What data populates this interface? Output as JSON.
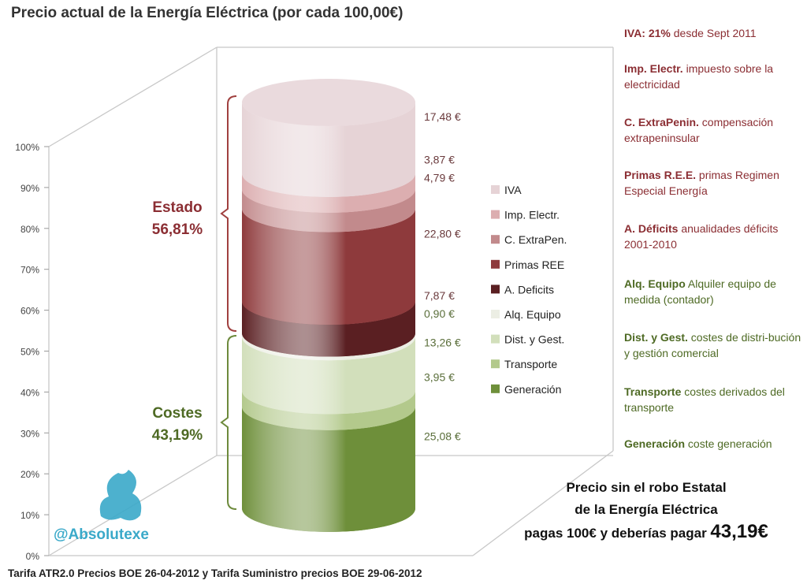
{
  "chart_data": {
    "type": "bar",
    "subtype": "stacked-cylinder",
    "title": "Precio actual de la Energía Eléctrica (por cada 100,00€)",
    "ylim": [
      0,
      100
    ],
    "y_ticks": [
      "0%",
      "10%",
      "20%",
      "30%",
      "40%",
      "50%",
      "60%",
      "70%",
      "80%",
      "90%",
      "100%"
    ],
    "series": [
      {
        "name": "Generación",
        "value": 25.08,
        "label": "25,08 €",
        "color": "#6e8f3a",
        "group": "costes"
      },
      {
        "name": "Transporte",
        "value": 3.95,
        "label": "3,95 €",
        "color": "#b3c98c",
        "group": "costes"
      },
      {
        "name": "Dist. y Gest.",
        "value": 13.26,
        "label": "13,26 €",
        "color": "#d2dfbb",
        "group": "costes"
      },
      {
        "name": "Alq. Equipo",
        "value": 0.9,
        "label": "0,90 €",
        "color": "#eceee4",
        "group": "costes"
      },
      {
        "name": "A. Deficits",
        "value": 7.87,
        "label": "7,87 €",
        "color": "#5a1f22",
        "group": "estado"
      },
      {
        "name": "Primas REE",
        "value": 22.8,
        "label": "22,80 €",
        "color": "#8e3a3c",
        "group": "estado"
      },
      {
        "name": "C. ExtraPen.",
        "value": 4.79,
        "label": "4,79 €",
        "color": "#c28a8c",
        "group": "estado"
      },
      {
        "name": "Imp. Electr.",
        "value": 3.87,
        "label": "3,87 €",
        "color": "#dcaeb0",
        "group": "estado"
      },
      {
        "name": "IVA",
        "value": 17.48,
        "label": "17,48 €",
        "color": "#e6d3d6",
        "group": "estado"
      }
    ],
    "legend_placement": "right",
    "groups": {
      "estado": {
        "name": "Estado",
        "total": "56,81%",
        "color": "#8b2e33"
      },
      "costes": {
        "name": "Costes",
        "total": "43,19%",
        "color": "#4e6a24"
      }
    }
  },
  "notes": [
    {
      "term": "IVA: 21%",
      "desc": " desde Sept 2011",
      "color": "red"
    },
    {
      "term": "Imp. Electr.",
      "desc": "  impuesto sobre la electricidad",
      "color": "red"
    },
    {
      "term": "C. ExtraPenin.",
      "desc": " compensación extrapeninsular",
      "color": "red"
    },
    {
      "term": "Primas R.E.E.",
      "desc": " primas Regimen Especial Energía",
      "color": "red"
    },
    {
      "term": "A. Déficits",
      "desc": " anualidades déficits 2001-2010",
      "color": "red"
    },
    {
      "term": "Alq. Equipo",
      "desc": "  Alquiler equipo de medida (contador)",
      "color": "green"
    },
    {
      "term": "Dist. y Gest.",
      "desc": " costes de distri-bución y gestión comercial",
      "color": "green"
    },
    {
      "term": "Transporte",
      "desc": " costes derivados del transporte",
      "color": "green"
    },
    {
      "term": "Generación",
      "desc": " coste generación",
      "color": "green"
    }
  ],
  "bottom": {
    "line1": "Precio sin el robo Estatal",
    "line2": "de la Energía Eléctrica",
    "line3": "pagas 100€ y deberías pagar ",
    "amount": "43,19€"
  },
  "footer": "Tarifa ATR2.0 Precios BOE 26-04-2012 y Tarifa Suministro precios BOE 29-06-2012",
  "logo": "@Absolutexe"
}
